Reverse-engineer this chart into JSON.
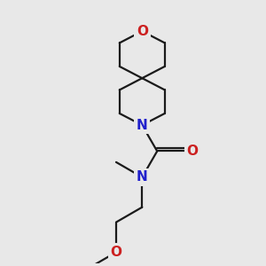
{
  "bg_color": "#e8e8e8",
  "bond_color": "#1a1a1a",
  "N_color": "#2020cc",
  "O_color": "#cc2020",
  "font_size_atom": 10,
  "line_width": 1.6,
  "fig_w": 3.0,
  "fig_h": 3.0,
  "dpi": 100,
  "xlim": [
    0.0,
    1.0
  ],
  "ylim": [
    0.0,
    1.0
  ]
}
